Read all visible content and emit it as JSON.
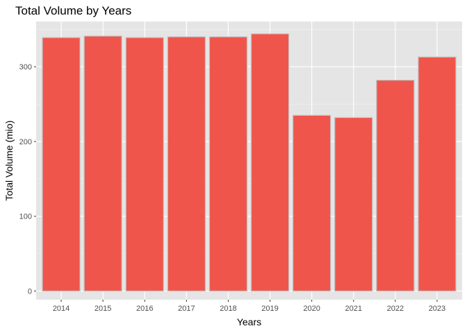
{
  "chart_data": {
    "type": "bar",
    "title": "Total Volume by Years",
    "xlabel": "Years",
    "ylabel": "Total Volume (mio)",
    "categories": [
      "2014",
      "2015",
      "2016",
      "2017",
      "2018",
      "2019",
      "2020",
      "2021",
      "2022",
      "2023"
    ],
    "values": [
      339,
      341,
      339,
      340,
      340,
      344,
      235,
      232,
      282,
      313
    ],
    "ylim": [
      0,
      360
    ],
    "yticks": [
      0,
      100,
      200,
      300
    ],
    "grid": true,
    "legend": "none",
    "colors": {
      "bar_fill": "#f0554b",
      "bar_stroke": "#c2c2c2",
      "panel_background": "#e5e5e5",
      "grid_major": "#ffffff",
      "grid_minor": "#f2f2f2"
    }
  }
}
